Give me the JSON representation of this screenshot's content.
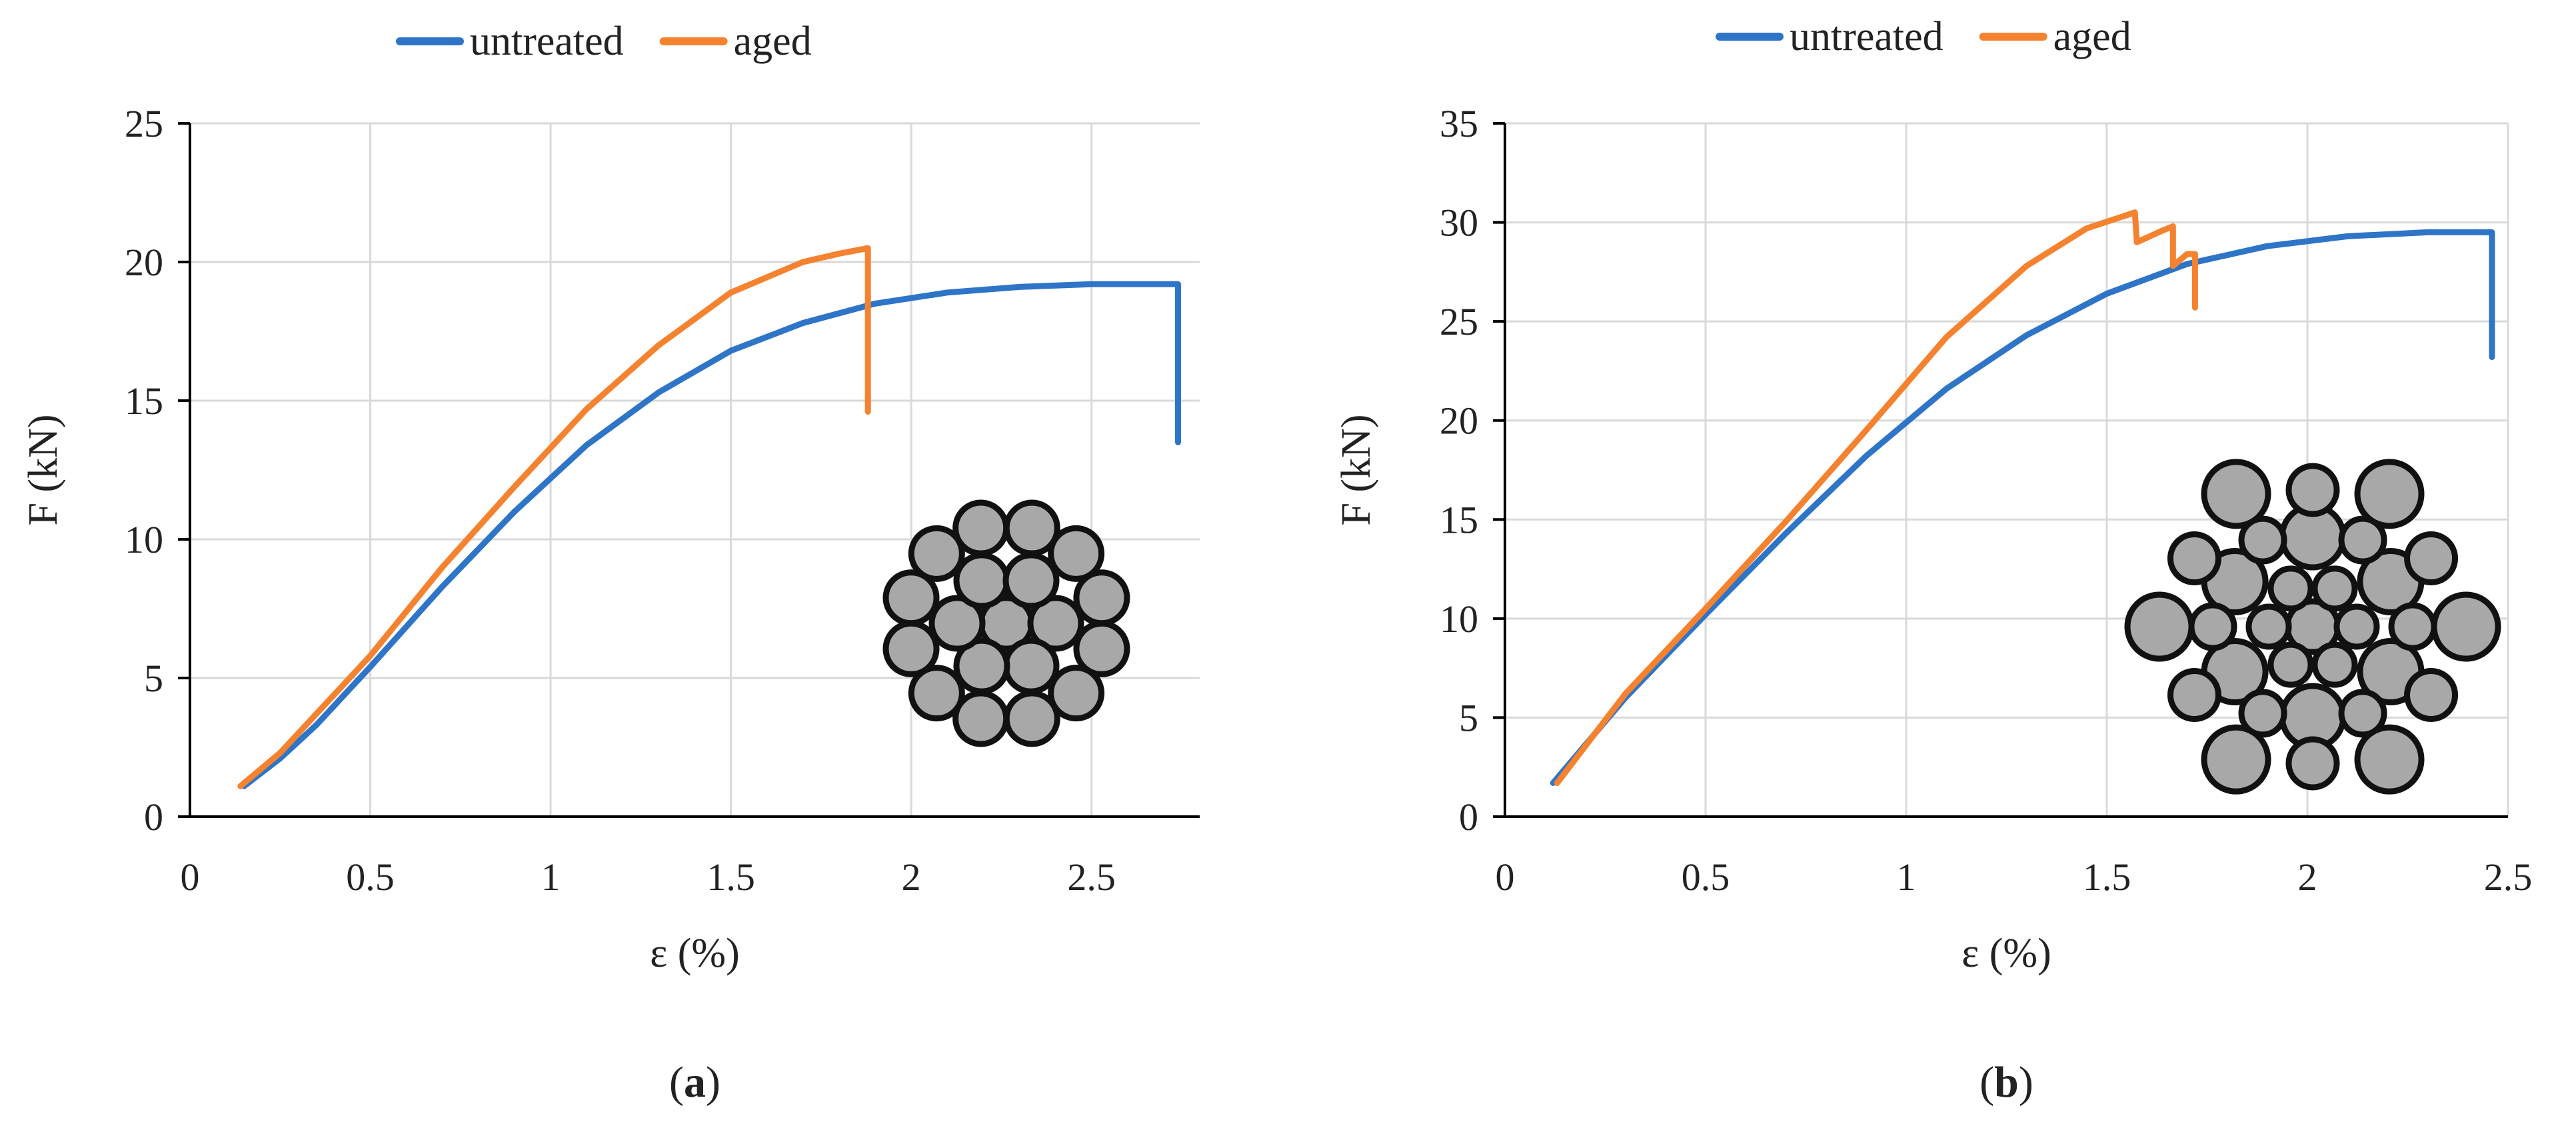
{
  "colors": {
    "untreated": "#2e75c8",
    "aged": "#f5822f",
    "grid": "#d9d9d9",
    "axis": "#000000"
  },
  "chart_data": [
    {
      "id": "a",
      "type": "line",
      "panel_label": "a",
      "xlabel": "ε (%)",
      "ylabel": "F (kN)",
      "xlim": [
        0,
        2.8
      ],
      "ylim": [
        0,
        25
      ],
      "xticks": [
        0,
        0.5,
        1,
        1.5,
        2,
        2.5
      ],
      "xtick_labels": [
        "0",
        "0.5",
        "1",
        "1.5",
        "2",
        "2.5"
      ],
      "yticks": [
        0,
        5,
        10,
        15,
        20,
        25
      ],
      "ytick_labels": [
        "0",
        "5",
        "10",
        "15",
        "20",
        "25"
      ],
      "legend": {
        "position": "top",
        "entries": [
          "untreated",
          "aged"
        ]
      },
      "cross_section": "strand-19-wire",
      "series": [
        {
          "name": "untreated",
          "color_key": "untreated",
          "x": [
            0.15,
            0.25,
            0.35,
            0.5,
            0.7,
            0.9,
            1.1,
            1.3,
            1.5,
            1.7,
            1.9,
            2.1,
            2.3,
            2.5,
            2.6,
            2.74,
            2.74
          ],
          "y": [
            1.1,
            2.1,
            3.3,
            5.4,
            8.3,
            11.0,
            13.4,
            15.3,
            16.8,
            17.8,
            18.5,
            18.9,
            19.1,
            19.2,
            19.2,
            19.2,
            13.5
          ]
        },
        {
          "name": "aged",
          "color_key": "aged",
          "x": [
            0.14,
            0.25,
            0.35,
            0.5,
            0.7,
            0.9,
            1.1,
            1.3,
            1.5,
            1.7,
            1.8,
            1.88,
            1.88
          ],
          "y": [
            1.1,
            2.3,
            3.7,
            5.8,
            9.0,
            11.9,
            14.7,
            17.0,
            18.9,
            20.0,
            20.3,
            20.5,
            14.6
          ]
        }
      ]
    },
    {
      "id": "b",
      "type": "line",
      "panel_label": "b",
      "xlabel": "ε (%)",
      "ylabel": "F (kN)",
      "xlim": [
        0,
        2.5
      ],
      "ylim": [
        0,
        35
      ],
      "xticks": [
        0,
        0.5,
        1,
        1.5,
        2,
        2.5
      ],
      "xtick_labels": [
        "0",
        "0.5",
        "1",
        "1.5",
        "2",
        "2.5"
      ],
      "yticks": [
        0,
        5,
        10,
        15,
        20,
        25,
        30,
        35
      ],
      "ytick_labels": [
        "0",
        "5",
        "10",
        "15",
        "20",
        "25",
        "30",
        "35"
      ],
      "legend": {
        "position": "top",
        "entries": [
          "untreated",
          "aged"
        ]
      },
      "cross_section": "rope-multi-strand",
      "series": [
        {
          "name": "untreated",
          "color_key": "untreated",
          "x": [
            0.12,
            0.3,
            0.5,
            0.7,
            0.9,
            1.1,
            1.3,
            1.5,
            1.7,
            1.9,
            2.1,
            2.3,
            2.46,
            2.46
          ],
          "y": [
            1.7,
            6.0,
            10.2,
            14.3,
            18.2,
            21.6,
            24.3,
            26.4,
            27.9,
            28.8,
            29.3,
            29.5,
            29.5,
            23.2
          ]
        },
        {
          "name": "aged",
          "color_key": "aged",
          "x": [
            0.13,
            0.3,
            0.5,
            0.7,
            0.9,
            1.1,
            1.3,
            1.45,
            1.57,
            1.575,
            1.64,
            1.665,
            1.665,
            1.7,
            1.72,
            1.72
          ],
          "y": [
            1.7,
            6.2,
            10.5,
            14.9,
            19.5,
            24.2,
            27.8,
            29.7,
            30.5,
            29.0,
            29.6,
            29.8,
            27.8,
            28.4,
            28.4,
            25.7
          ]
        }
      ]
    }
  ]
}
